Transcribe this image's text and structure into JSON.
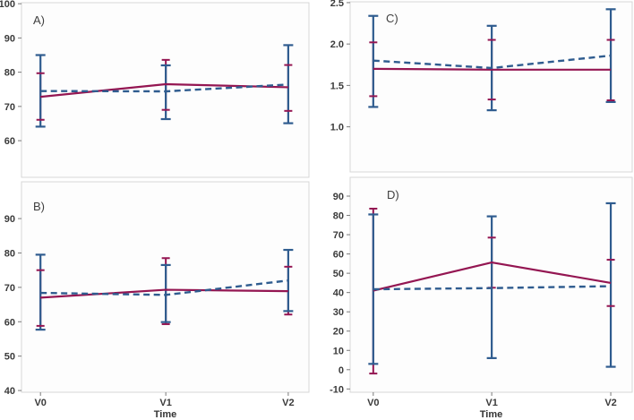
{
  "figure": {
    "background": "#ffffff",
    "description_panels": [
      "A)",
      "B)",
      "C)",
      "D)"
    ]
  },
  "colors": {
    "solid_series": "#941652",
    "dashed_series": "#2F5C8F",
    "tick_label": "#3a3a3a",
    "panel_border": "#d7d7d7",
    "plot_background": "#fdfdfd"
  },
  "chart_data": [
    {
      "id": "A",
      "type": "line",
      "panel_label": "A)",
      "title": "",
      "categories": [
        "V0",
        "V1",
        "V2"
      ],
      "xlabel": "",
      "ylabel": "",
      "show_x_labels": false,
      "grid": false,
      "legend": "none",
      "ylim": [
        49.3,
        100.3
      ],
      "yticks": [
        60,
        70,
        80,
        90,
        100
      ],
      "ytick_decimals": 0,
      "series": [
        {
          "name": "solid",
          "line_style": "solid",
          "color_key": "solid_series",
          "values": [
            72.8,
            76.5,
            75.6
          ],
          "ci_low": [
            66.1,
            69.0,
            68.7
          ],
          "ci_high": [
            79.7,
            83.6,
            82.1
          ]
        },
        {
          "name": "dashed",
          "line_style": "dashed",
          "color_key": "dashed_series",
          "values": [
            74.5,
            74.4,
            76.4
          ],
          "ci_low": [
            64.1,
            66.3,
            65.1
          ],
          "ci_high": [
            85.0,
            82.0,
            87.9
          ]
        }
      ]
    },
    {
      "id": "B",
      "type": "line",
      "panel_label": "B)",
      "title": "",
      "categories": [
        "V0",
        "V1",
        "V2"
      ],
      "xlabel": "Time",
      "ylabel": "",
      "show_x_labels": true,
      "grid": false,
      "legend": "none",
      "ylim": [
        39.5,
        100.7
      ],
      "yticks": [
        40,
        50,
        60,
        70,
        80,
        90
      ],
      "ytick_decimals": 0,
      "series": [
        {
          "name": "solid",
          "line_style": "solid",
          "color_key": "solid_series",
          "values": [
            67.0,
            69.3,
            68.9
          ],
          "ci_low": [
            58.8,
            59.3,
            62.1
          ],
          "ci_high": [
            75.0,
            78.5,
            76.0
          ]
        },
        {
          "name": "dashed",
          "line_style": "dashed",
          "color_key": "dashed_series",
          "values": [
            68.4,
            67.8,
            72.0
          ],
          "ci_low": [
            57.7,
            59.9,
            63.1
          ],
          "ci_high": [
            79.5,
            76.5,
            80.9
          ]
        }
      ]
    },
    {
      "id": "C",
      "type": "line",
      "panel_label": "C)",
      "title": "",
      "categories": [
        "V0",
        "V1",
        "V2"
      ],
      "xlabel": "",
      "ylabel": "",
      "show_x_labels": false,
      "grid": false,
      "legend": "none",
      "ylim": [
        0.455,
        2.51
      ],
      "yticks": [
        1.0,
        1.5,
        2.0,
        2.5
      ],
      "ytick_decimals": 1,
      "series": [
        {
          "name": "solid",
          "line_style": "solid",
          "color_key": "solid_series",
          "values": [
            1.7,
            1.69,
            1.69
          ],
          "ci_low": [
            1.37,
            1.33,
            1.32
          ],
          "ci_high": [
            2.02,
            2.05,
            2.05
          ]
        },
        {
          "name": "dashed",
          "line_style": "dashed",
          "color_key": "dashed_series",
          "values": [
            1.8,
            1.71,
            1.86
          ],
          "ci_low": [
            1.24,
            1.2,
            1.3
          ],
          "ci_high": [
            2.34,
            2.22,
            2.42
          ]
        }
      ]
    },
    {
      "id": "D",
      "type": "line",
      "panel_label": "D)",
      "title": "",
      "categories": [
        "V0",
        "V1",
        "V2"
      ],
      "xlabel": "Time",
      "ylabel": "",
      "show_x_labels": true,
      "grid": false,
      "legend": "none",
      "ylim": [
        -11.7,
        99.75
      ],
      "yticks": [
        -10,
        0,
        10,
        20,
        30,
        40,
        50,
        60,
        70,
        80,
        90
      ],
      "ytick_decimals": 0,
      "series": [
        {
          "name": "solid",
          "line_style": "solid",
          "color_key": "solid_series",
          "values": [
            41.0,
            55.6,
            45.0
          ],
          "ci_low": [
            -2.0,
            42.5,
            33.0
          ],
          "ci_high": [
            83.5,
            68.5,
            57.0
          ]
        },
        {
          "name": "dashed",
          "line_style": "dashed",
          "color_key": "dashed_series",
          "values": [
            41.7,
            42.3,
            43.3
          ],
          "ci_low": [
            3.0,
            6.0,
            1.5
          ],
          "ci_high": [
            80.5,
            79.5,
            86.3
          ]
        }
      ]
    }
  ]
}
